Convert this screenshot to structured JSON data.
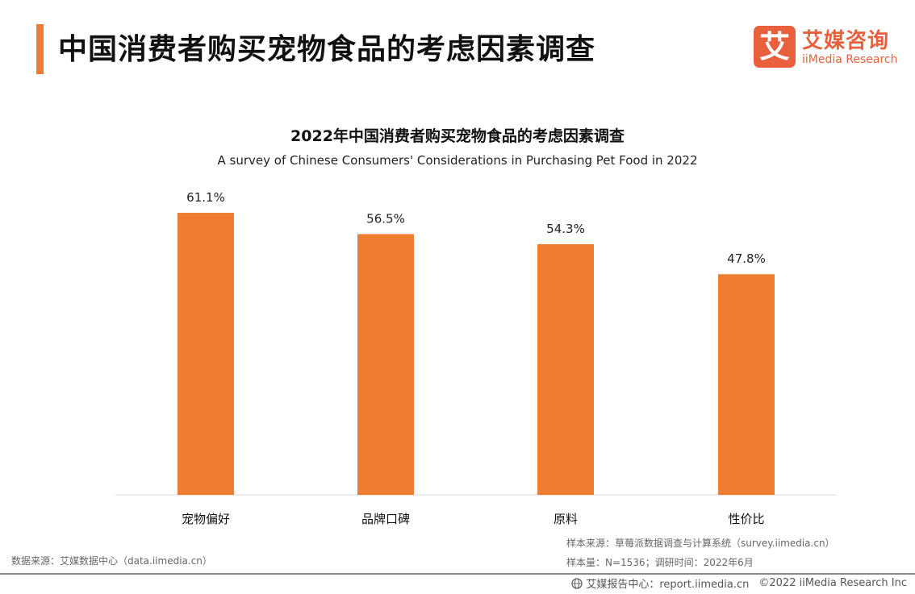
{
  "header": {
    "title": "中国消费者购买宠物食品的考虑因素调查"
  },
  "logo": {
    "mark": "艾",
    "cn": "艾媒咨询",
    "en": "iiMedia Research",
    "color": "#e8603c"
  },
  "chart_data": {
    "type": "bar",
    "title": "2022年中国消费者购买宠物食品的考虑因素调查",
    "subtitle": "A survey of Chinese Consumers' Considerations in Purchasing Pet Food in 2022",
    "categories": [
      "宠物偏好",
      "品牌口碑",
      "原料",
      "性价比"
    ],
    "values": [
      61.1,
      56.5,
      54.3,
      47.8
    ],
    "value_labels": [
      "61.1%",
      "56.5%",
      "54.3%",
      "47.8%"
    ],
    "unit": "%",
    "ylim": [
      0,
      66
    ],
    "grid": false,
    "bar_color": "#ef7d31"
  },
  "source": {
    "left": "数据来源：艾媒数据中心（data.iimedia.cn）",
    "sample_source": "样本来源：草莓派数据调查与计算系统（survey.iimedia.cn）",
    "sample_size": "样本量：N=1536；调研时间：2022年6月"
  },
  "footer": {
    "report_center": "艾媒报告中心：report.iimedia.cn",
    "copyright": "©2022  iiMedia Research  Inc",
    "icon": "globe-icon"
  }
}
